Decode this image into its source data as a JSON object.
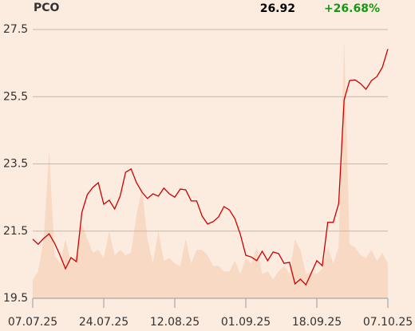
{
  "chart_data": {
    "type": "line",
    "title": "PCO",
    "last": "26.92",
    "change": "+26.68%",
    "categories": [
      "07.07.25",
      null,
      null,
      null,
      null,
      null,
      null,
      null,
      null,
      null,
      null,
      null,
      null,
      "24.07.25",
      null,
      null,
      null,
      null,
      null,
      null,
      null,
      null,
      null,
      null,
      null,
      null,
      "12.08.25",
      null,
      null,
      null,
      null,
      null,
      null,
      null,
      null,
      null,
      null,
      null,
      null,
      "01.09.25",
      null,
      null,
      null,
      null,
      null,
      null,
      null,
      null,
      null,
      null,
      null,
      null,
      "18.09.25",
      null,
      null,
      null,
      null,
      null,
      null,
      null,
      null,
      null,
      null,
      null,
      null,
      "07.10.25"
    ],
    "series": [
      {
        "color": "#cc0000",
        "values": [
          21.26,
          21.11,
          21.28,
          21.42,
          21.14,
          20.78,
          20.38,
          20.71,
          20.59,
          22.06,
          22.59,
          22.8,
          22.94,
          22.3,
          22.42,
          22.16,
          22.54,
          23.25,
          23.35,
          22.94,
          22.66,
          22.47,
          22.61,
          22.54,
          22.78,
          22.61,
          22.51,
          22.75,
          22.73,
          22.4,
          22.4,
          21.95,
          21.71,
          21.78,
          21.92,
          22.23,
          22.13,
          21.87,
          21.4,
          20.78,
          20.73,
          20.62,
          20.9,
          20.62,
          20.88,
          20.83,
          20.54,
          20.57,
          19.93,
          20.07,
          19.9,
          20.26,
          20.62,
          20.47,
          21.76,
          21.76,
          22.32,
          25.41,
          25.98,
          26.0,
          25.89,
          25.72,
          25.98,
          26.1,
          26.38,
          26.92
        ]
      }
    ],
    "volume": {
      "color": "#f8d9c3",
      "ylim": [
        0,
        100
      ],
      "values": [
        7,
        10,
        22,
        55,
        16,
        13,
        22,
        13,
        16,
        28,
        22,
        17,
        18,
        15,
        25,
        16,
        18,
        16,
        17,
        31,
        41,
        22,
        13,
        25,
        14,
        15,
        13,
        12,
        22,
        13,
        18,
        18,
        16,
        12,
        12,
        10,
        10,
        14,
        9,
        15,
        13,
        19,
        9,
        10,
        7,
        10,
        12,
        9,
        22,
        18,
        9,
        10,
        9,
        11,
        19,
        13,
        19,
        96,
        20,
        19,
        16,
        15,
        18,
        14,
        17,
        13
      ]
    },
    "ylim": [
      19.5,
      27.5
    ],
    "yticks": [
      19.5,
      21.5,
      23.5,
      25.5,
      27.5
    ],
    "grid": true,
    "change_color": "#119911"
  }
}
